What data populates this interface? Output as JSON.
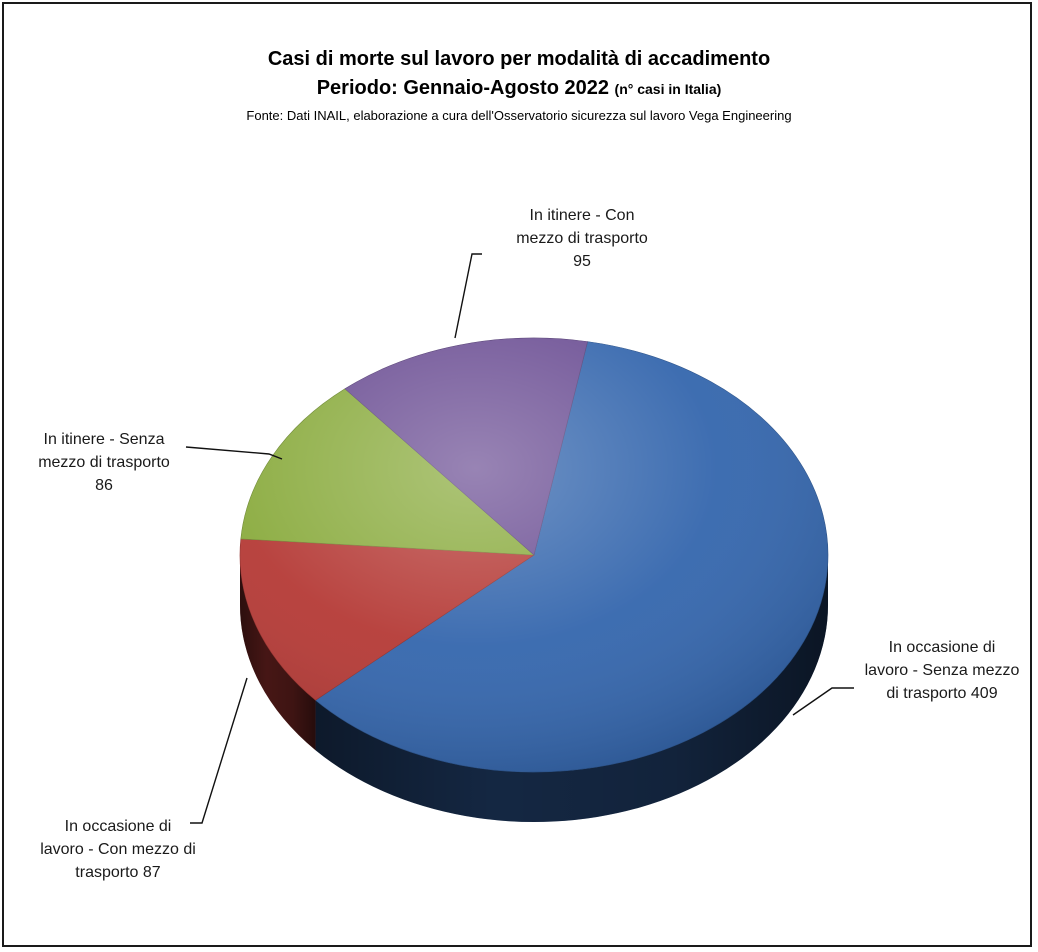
{
  "chart_data": {
    "type": "pie",
    "title": "Casi di morte sul lavoro per modalità di accadimento",
    "subtitle_main": "Periodo: Gennaio-Agosto 2022",
    "subtitle_unit": "(n° casi in Italia)",
    "source": "Fonte: Dati INAIL, elaborazione a cura dell'Osservatorio sicurezza sul lavoro Vega Engineering",
    "slices": [
      {
        "label_lines": [
          "In occasione di",
          "lavoro - Senza mezzo",
          "di trasporto 409"
        ],
        "value": 409,
        "color": "#3466ad"
      },
      {
        "label_lines": [
          "In occasione di",
          "lavoro - Con mezzo di",
          "trasporto 87"
        ],
        "value": 87,
        "color": "#b53a36"
      },
      {
        "label_lines": [
          "In itinere - Senza",
          "mezzo di trasporto",
          "86"
        ],
        "value": 86,
        "color": "#8aab3e"
      },
      {
        "label_lines": [
          "In itinere - Con",
          "mezzo di trasporto",
          "95"
        ],
        "value": 95,
        "color": "#6c4f94"
      }
    ]
  }
}
